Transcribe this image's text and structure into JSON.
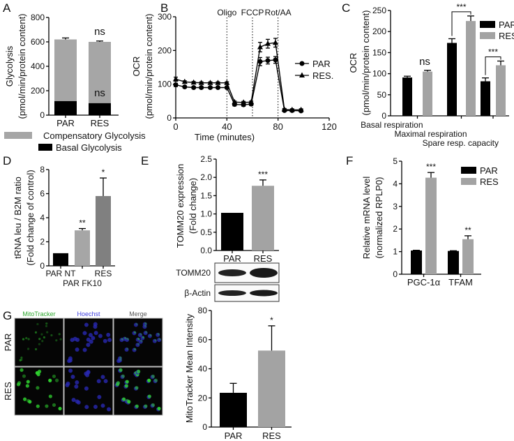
{
  "panel_labels": [
    "A",
    "B",
    "C",
    "D",
    "E",
    "F",
    "G"
  ],
  "colors": {
    "par": "#000000",
    "res": "#a3a3a3",
    "res_dark": "#808080",
    "mitotracker": "#2fa82f",
    "hoechst": "#4040e0",
    "merge": "#555555"
  },
  "chart_data": [
    {
      "panel": "A",
      "type": "bar",
      "stacked": true,
      "categories": [
        "PAR",
        "RES"
      ],
      "series": [
        {
          "name": "Basal Glycolysis",
          "values": [
            115,
            98
          ],
          "color": "#000000"
        },
        {
          "name": "Compensatory Glycolysis",
          "values": [
            505,
            502
          ],
          "color": "#a6a6a6"
        }
      ],
      "total_errors": [
        12,
        7
      ],
      "ylim": [
        0,
        800
      ],
      "yticks": [
        "0",
        "200",
        "400",
        "600",
        "800"
      ],
      "ylabel": [
        "Glycolysis",
        "(pmol/min/protein content)"
      ],
      "annotations": {
        "top": [
          "",
          "ns"
        ],
        "basal": [
          "",
          "ns"
        ]
      },
      "legend": "bottom"
    },
    {
      "panel": "B",
      "type": "line",
      "x": [
        0,
        7,
        14,
        20,
        27,
        33,
        40,
        46,
        53,
        59,
        66,
        72,
        78,
        85,
        91,
        98
      ],
      "series": [
        {
          "name": "PAR",
          "marker": "circle",
          "values": [
            98,
            92,
            90,
            90,
            90,
            90,
            90,
            40,
            39,
            41,
            167,
            170,
            172,
            22,
            22,
            21
          ],
          "errors": [
            5,
            3,
            3,
            3,
            3,
            3,
            3,
            4,
            4,
            4,
            12,
            10,
            10,
            3,
            3,
            3
          ]
        },
        {
          "name": "RES.",
          "marker": "triangle",
          "values": [
            115,
            107,
            105,
            104,
            104,
            104,
            104,
            47,
            46,
            47,
            210,
            220,
            223,
            25,
            24,
            24
          ],
          "errors": [
            6,
            3,
            3,
            3,
            3,
            3,
            3,
            3,
            3,
            3,
            14,
            13,
            13,
            3,
            3,
            3
          ]
        }
      ],
      "xlim": [
        0,
        120
      ],
      "xticks": [
        "0",
        "40",
        "80",
        "120"
      ],
      "ylim": [
        0,
        300
      ],
      "yticks": [
        "0",
        "100",
        "200",
        "300"
      ],
      "xlabel": "Time (minutes)",
      "ylabel": [
        "OCR",
        "(pmol/min/protein content)"
      ],
      "injections": [
        {
          "label": "Oligo",
          "x": 40
        },
        {
          "label": "FCCP",
          "x": 60
        },
        {
          "label": "Rot/AA",
          "x": 80
        }
      ],
      "legend": "right"
    },
    {
      "panel": "C",
      "type": "bar",
      "categories": [
        "Basal respiration",
        "Maximal respiration",
        "Spare resp. capacity"
      ],
      "series": [
        {
          "name": "PAR",
          "values": [
            91,
            173,
            82
          ],
          "errors": [
            3,
            10,
            8
          ],
          "color": "#000000"
        },
        {
          "name": "RES",
          "values": [
            105,
            225,
            120
          ],
          "errors": [
            3,
            12,
            10
          ],
          "color": "#a3a3a3"
        }
      ],
      "ylim": [
        0,
        250
      ],
      "yticks": [
        "0",
        "50",
        "100",
        "150",
        "200",
        "250"
      ],
      "ylabel": [
        "OCR",
        "(pmol/min/protein content)"
      ],
      "annotations": [
        "ns",
        "***",
        "***"
      ],
      "brackets": [
        false,
        true,
        true
      ],
      "legend": "top-right"
    },
    {
      "panel": "D",
      "type": "bar",
      "categories": [
        "PAR NT",
        "PAR FK10",
        "RES"
      ],
      "values": [
        1.05,
        2.95,
        5.8
      ],
      "errors": [
        0,
        0.15,
        1.5
      ],
      "colors": [
        "#000000",
        "#a6a6a6",
        "#808080"
      ],
      "ylim": [
        0,
        8
      ],
      "yticks": [
        "0",
        "2",
        "4",
        "6",
        "8"
      ],
      "ylabel": [
        "tRNA leu / B2M ratio",
        "(Fold change of control)"
      ],
      "annotations": [
        "",
        "**",
        "*"
      ]
    },
    {
      "panel": "E",
      "type": "bar",
      "categories": [
        "PAR",
        "RES"
      ],
      "values": [
        1.03,
        1.77
      ],
      "errors": [
        0.01,
        0.16
      ],
      "colors": [
        "#000000",
        "#a3a3a3"
      ],
      "ylim": [
        0,
        2.5
      ],
      "yticks": [
        "0.0",
        "0.5",
        "1.0",
        "1.5",
        "2.0",
        "2.5"
      ],
      "ylabel": [
        "TOMM20 expression",
        "(Fold change)"
      ],
      "annotations": [
        "",
        "***"
      ]
    },
    {
      "panel": "F",
      "type": "bar",
      "categories": [
        "PGC-1α",
        "TFAM"
      ],
      "series": [
        {
          "name": "PAR",
          "values": [
            1.05,
            1.03
          ],
          "errors": [
            0.01,
            0.01
          ],
          "color": "#000000"
        },
        {
          "name": "RES",
          "values": [
            4.27,
            1.55
          ],
          "errors": [
            0.23,
            0.15
          ],
          "color": "#a3a3a3"
        }
      ],
      "ylim": [
        0,
        5
      ],
      "yticks": [
        "0",
        "1",
        "2",
        "3",
        "4",
        "5"
      ],
      "ylabel": [
        "Relative mRNA level",
        "(normalized RPLP0)"
      ],
      "annotations": [
        "***",
        "**"
      ],
      "legend": "top-right"
    },
    {
      "panel": "G",
      "type": "bar",
      "categories": [
        "PAR",
        "RES"
      ],
      "values": [
        23.5,
        52.5
      ],
      "errors": [
        6.5,
        17
      ],
      "colors": [
        "#000000",
        "#a3a3a3"
      ],
      "ylim": [
        0,
        80
      ],
      "yticks": [
        "0",
        "20",
        "40",
        "60",
        "80"
      ],
      "ylabel": [
        "MitoTracker Mean Intensity"
      ],
      "annotations": [
        "",
        "*"
      ]
    }
  ],
  "blot": {
    "rows": [
      "TOMM20",
      "β-Actin"
    ]
  },
  "microscopy": {
    "channels": [
      "MitoTracker",
      "Hoechst",
      "Merge"
    ],
    "rows": [
      "PAR",
      "RES"
    ]
  }
}
